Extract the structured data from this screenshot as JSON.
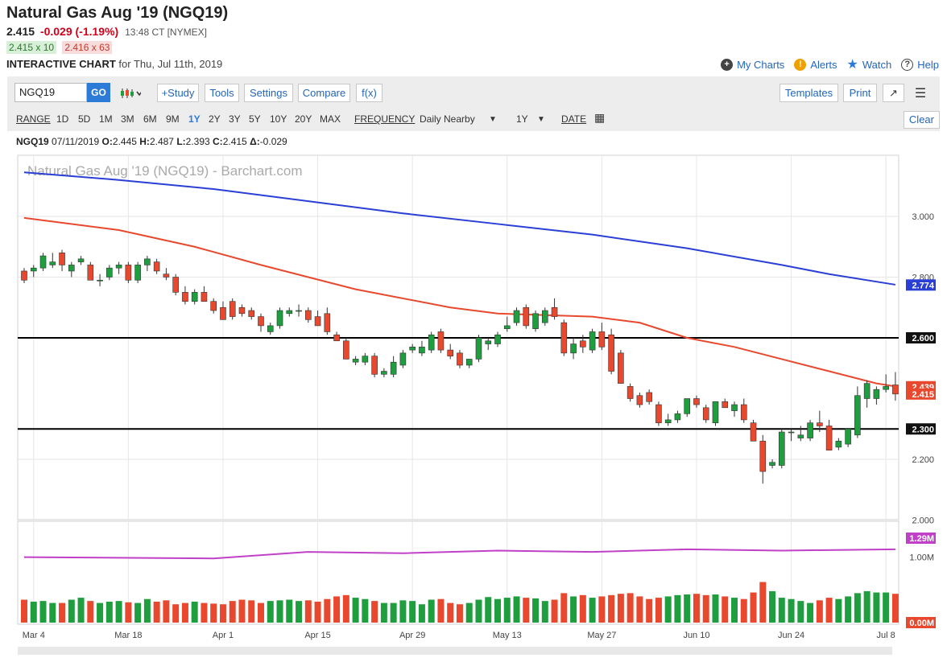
{
  "header": {
    "title": "Natural Gas Aug '19 (NGQ19)",
    "last": "2.415",
    "change": "-0.029 (-1.19%)",
    "time": "13:48 CT [NYMEX]",
    "bid": "2.415 x 10",
    "ask": "2.416 x 63",
    "chart_label": "INTERACTIVE CHART",
    "chart_date": "for Thu, Jul 11th, 2019"
  },
  "links": {
    "my_charts": "My Charts",
    "alerts": "Alerts",
    "watch": "Watch",
    "help": "Help"
  },
  "toolbar": {
    "symbol": "NGQ19",
    "go": "GO",
    "study": "+Study",
    "tools": "Tools",
    "settings": "Settings",
    "compare": "Compare",
    "fx": "f(x)",
    "templates": "Templates",
    "print": "Print",
    "expand": "↗",
    "menu": "☰"
  },
  "rangebar": {
    "range_label": "RANGE",
    "ranges": [
      "1D",
      "5D",
      "1M",
      "3M",
      "6M",
      "9M",
      "1Y",
      "2Y",
      "3Y",
      "5Y",
      "10Y",
      "20Y",
      "MAX"
    ],
    "selected_range": "1Y",
    "frequency_label": "FREQUENCY",
    "frequency": "Daily Nearby",
    "freq_period": "1Y",
    "date_label": "DATE",
    "clear": "Clear"
  },
  "ohlc": {
    "symbol": "NGQ19",
    "date": "07/11/2019",
    "o_label": "O:",
    "o": "2.445",
    "h_label": "H:",
    "h": "2.487",
    "l_label": "L:",
    "l": "2.393",
    "c_label": "C:",
    "c": "2.415",
    "d_label": "Δ:",
    "d": "-0.029"
  },
  "colors": {
    "up": "#1e9e3e",
    "down": "#e8492e",
    "ma_long": "#2a3fd6",
    "ma_short": "#e8492e",
    "vol_avg": "#c040c8",
    "accent": "#2c7bd6"
  },
  "chart_data": {
    "type": "candlestick",
    "watermark": "Natural Gas Aug '19 (NGQ19) - Barchart.com",
    "y_ticks": [
      "3.000",
      "2.800",
      "2.200",
      "2.000"
    ],
    "ylim": [
      2.0,
      3.1
    ],
    "x_ticks": [
      "Mar 4",
      "Mar 18",
      "Apr 1",
      "Apr 15",
      "Apr 29",
      "May 13",
      "May 27",
      "Jun 10",
      "Jun 24",
      "Jul 8"
    ],
    "x_tick_index": [
      1,
      11,
      21,
      31,
      41,
      51,
      61,
      71,
      81,
      91
    ],
    "horizontal_lines": [
      {
        "value": 2.6,
        "label": "2.600"
      },
      {
        "value": 2.3,
        "label": "2.300"
      }
    ],
    "price_labels": [
      {
        "value": 2.774,
        "label": "2.774",
        "color": "#2a3fd6"
      },
      {
        "value": 2.439,
        "label": "2.439",
        "color": "#e8492e"
      },
      {
        "value": 2.415,
        "label": "2.415",
        "color": "#e8492e"
      }
    ],
    "candles": [
      [
        2.82,
        2.83,
        2.78,
        2.79
      ],
      [
        2.82,
        2.84,
        2.8,
        2.83
      ],
      [
        2.83,
        2.88,
        2.82,
        2.87
      ],
      [
        2.84,
        2.88,
        2.83,
        2.85
      ],
      [
        2.88,
        2.89,
        2.82,
        2.84
      ],
      [
        2.82,
        2.85,
        2.8,
        2.84
      ],
      [
        2.85,
        2.87,
        2.84,
        2.86
      ],
      [
        2.84,
        2.85,
        2.79,
        2.79
      ],
      [
        2.79,
        2.81,
        2.77,
        2.79
      ],
      [
        2.8,
        2.84,
        2.79,
        2.83
      ],
      [
        2.83,
        2.85,
        2.81,
        2.84
      ],
      [
        2.84,
        2.85,
        2.78,
        2.79
      ],
      [
        2.79,
        2.85,
        2.78,
        2.84
      ],
      [
        2.84,
        2.87,
        2.82,
        2.86
      ],
      [
        2.85,
        2.86,
        2.81,
        2.82
      ],
      [
        2.81,
        2.83,
        2.79,
        2.8
      ],
      [
        2.8,
        2.81,
        2.74,
        2.75
      ],
      [
        2.75,
        2.77,
        2.71,
        2.72
      ],
      [
        2.72,
        2.76,
        2.71,
        2.75
      ],
      [
        2.75,
        2.77,
        2.72,
        2.72
      ],
      [
        2.72,
        2.73,
        2.68,
        2.69
      ],
      [
        2.7,
        2.72,
        2.66,
        2.66
      ],
      [
        2.72,
        2.73,
        2.66,
        2.67
      ],
      [
        2.7,
        2.71,
        2.67,
        2.68
      ],
      [
        2.69,
        2.7,
        2.66,
        2.67
      ],
      [
        2.67,
        2.68,
        2.62,
        2.64
      ],
      [
        2.62,
        2.65,
        2.61,
        2.64
      ],
      [
        2.64,
        2.7,
        2.63,
        2.69
      ],
      [
        2.68,
        2.7,
        2.67,
        2.69
      ],
      [
        2.69,
        2.71,
        2.67,
        2.69
      ],
      [
        2.69,
        2.7,
        2.65,
        2.66
      ],
      [
        2.67,
        2.69,
        2.64,
        2.64
      ],
      [
        2.68,
        2.7,
        2.61,
        2.62
      ],
      [
        2.61,
        2.62,
        2.59,
        2.59
      ],
      [
        2.59,
        2.6,
        2.53,
        2.53
      ],
      [
        2.52,
        2.54,
        2.51,
        2.53
      ],
      [
        2.52,
        2.55,
        2.51,
        2.54
      ],
      [
        2.54,
        2.55,
        2.47,
        2.48
      ],
      [
        2.48,
        2.5,
        2.47,
        2.49
      ],
      [
        2.48,
        2.54,
        2.47,
        2.52
      ],
      [
        2.51,
        2.56,
        2.5,
        2.55
      ],
      [
        2.56,
        2.58,
        2.55,
        2.57
      ],
      [
        2.55,
        2.59,
        2.54,
        2.57
      ],
      [
        2.56,
        2.62,
        2.55,
        2.61
      ],
      [
        2.62,
        2.63,
        2.55,
        2.56
      ],
      [
        2.56,
        2.58,
        2.53,
        2.54
      ],
      [
        2.55,
        2.56,
        2.5,
        2.51
      ],
      [
        2.51,
        2.53,
        2.5,
        2.53
      ],
      [
        2.53,
        2.61,
        2.52,
        2.6
      ],
      [
        2.58,
        2.6,
        2.56,
        2.59
      ],
      [
        2.58,
        2.62,
        2.57,
        2.61
      ],
      [
        2.63,
        2.67,
        2.62,
        2.64
      ],
      [
        2.65,
        2.7,
        2.64,
        2.69
      ],
      [
        2.7,
        2.71,
        2.63,
        2.64
      ],
      [
        2.63,
        2.69,
        2.62,
        2.68
      ],
      [
        2.65,
        2.7,
        2.64,
        2.69
      ],
      [
        2.7,
        2.73,
        2.66,
        2.67
      ],
      [
        2.65,
        2.66,
        2.54,
        2.55
      ],
      [
        2.55,
        2.6,
        2.53,
        2.58
      ],
      [
        2.59,
        2.61,
        2.55,
        2.57
      ],
      [
        2.56,
        2.63,
        2.55,
        2.62
      ],
      [
        2.62,
        2.65,
        2.56,
        2.57
      ],
      [
        2.61,
        2.63,
        2.48,
        2.49
      ],
      [
        2.55,
        2.56,
        2.45,
        2.45
      ],
      [
        2.44,
        2.45,
        2.39,
        2.4
      ],
      [
        2.41,
        2.42,
        2.37,
        2.38
      ],
      [
        2.42,
        2.43,
        2.38,
        2.39
      ],
      [
        2.38,
        2.39,
        2.31,
        2.32
      ],
      [
        2.32,
        2.35,
        2.31,
        2.33
      ],
      [
        2.33,
        2.36,
        2.32,
        2.35
      ],
      [
        2.35,
        2.4,
        2.34,
        2.4
      ],
      [
        2.4,
        2.41,
        2.37,
        2.38
      ],
      [
        2.37,
        2.38,
        2.32,
        2.33
      ],
      [
        2.32,
        2.39,
        2.31,
        2.39
      ],
      [
        2.39,
        2.4,
        2.37,
        2.37
      ],
      [
        2.36,
        2.39,
        2.34,
        2.38
      ],
      [
        2.38,
        2.4,
        2.32,
        2.33
      ],
      [
        2.32,
        2.33,
        2.26,
        2.26
      ],
      [
        2.26,
        2.28,
        2.12,
        2.16
      ],
      [
        2.18,
        2.2,
        2.17,
        2.19
      ],
      [
        2.18,
        2.3,
        2.17,
        2.29
      ],
      [
        2.29,
        2.3,
        2.26,
        2.29
      ],
      [
        2.27,
        2.31,
        2.26,
        2.28
      ],
      [
        2.27,
        2.33,
        2.26,
        2.32
      ],
      [
        2.32,
        2.36,
        2.29,
        2.31
      ],
      [
        2.31,
        2.33,
        2.23,
        2.23
      ],
      [
        2.24,
        2.27,
        2.23,
        2.26
      ],
      [
        2.25,
        2.3,
        2.24,
        2.3
      ],
      [
        2.28,
        2.44,
        2.27,
        2.41
      ],
      [
        2.4,
        2.46,
        2.37,
        2.45
      ],
      [
        2.4,
        2.44,
        2.38,
        2.43
      ],
      [
        2.43,
        2.48,
        2.42,
        2.44
      ],
      [
        2.445,
        2.487,
        2.393,
        2.415
      ]
    ],
    "ma_long": [
      [
        0,
        3.145
      ],
      [
        10,
        3.12
      ],
      [
        20,
        3.09
      ],
      [
        30,
        3.05
      ],
      [
        40,
        3.01
      ],
      [
        50,
        2.975
      ],
      [
        60,
        2.94
      ],
      [
        70,
        2.895
      ],
      [
        80,
        2.84
      ],
      [
        85,
        2.81
      ],
      [
        92,
        2.775
      ]
    ],
    "ma_short": [
      [
        0,
        2.995
      ],
      [
        10,
        2.955
      ],
      [
        18,
        2.9
      ],
      [
        25,
        2.84
      ],
      [
        35,
        2.76
      ],
      [
        45,
        2.7
      ],
      [
        50,
        2.68
      ],
      [
        60,
        2.67
      ],
      [
        65,
        2.65
      ],
      [
        70,
        2.6
      ],
      [
        75,
        2.57
      ],
      [
        80,
        2.53
      ],
      [
        85,
        2.49
      ],
      [
        90,
        2.45
      ],
      [
        92,
        2.44
      ]
    ],
    "volume_labels": [
      {
        "label": "1.29M",
        "color": "#c040c8",
        "value": 1.29
      },
      {
        "label": "1.00M",
        "value": 1.0
      },
      {
        "label": "0.00M",
        "color": "#e8492e",
        "value": 0.0
      }
    ],
    "volume": [
      0.35,
      0.32,
      0.33,
      0.3,
      0.3,
      0.35,
      0.38,
      0.33,
      0.3,
      0.32,
      0.33,
      0.31,
      0.3,
      0.36,
      0.32,
      0.34,
      0.28,
      0.3,
      0.32,
      0.3,
      0.29,
      0.28,
      0.33,
      0.35,
      0.34,
      0.3,
      0.33,
      0.34,
      0.35,
      0.33,
      0.34,
      0.32,
      0.36,
      0.4,
      0.42,
      0.38,
      0.36,
      0.33,
      0.3,
      0.3,
      0.34,
      0.33,
      0.28,
      0.35,
      0.36,
      0.3,
      0.28,
      0.3,
      0.35,
      0.39,
      0.36,
      0.38,
      0.4,
      0.38,
      0.37,
      0.33,
      0.35,
      0.45,
      0.4,
      0.42,
      0.38,
      0.4,
      0.42,
      0.44,
      0.45,
      0.4,
      0.36,
      0.38,
      0.4,
      0.42,
      0.43,
      0.44,
      0.42,
      0.43,
      0.4,
      0.38,
      0.36,
      0.46,
      0.62,
      0.48,
      0.38,
      0.36,
      0.33,
      0.3,
      0.34,
      0.38,
      0.36,
      0.4,
      0.45,
      0.48,
      0.46,
      0.46,
      0.44
    ],
    "volume_avg": [
      [
        0,
        1.0
      ],
      [
        20,
        0.98
      ],
      [
        30,
        1.08
      ],
      [
        40,
        1.06
      ],
      [
        50,
        1.1
      ],
      [
        60,
        1.08
      ],
      [
        70,
        1.12
      ],
      [
        80,
        1.1
      ],
      [
        92,
        1.12
      ]
    ]
  }
}
